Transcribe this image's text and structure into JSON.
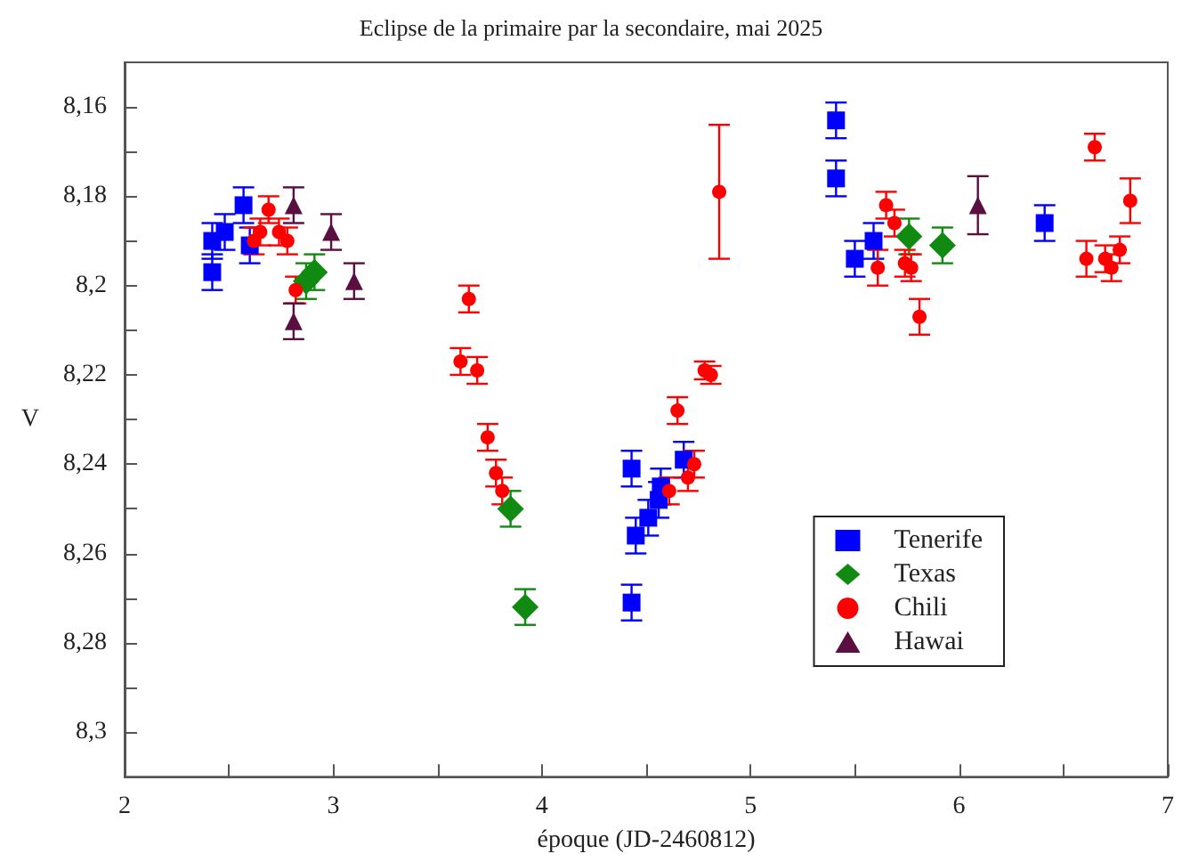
{
  "chart_data": {
    "type": "scatter",
    "title": "Eclipse de la primaire par la secondaire, mai 2025",
    "xlabel": "époque (JD-2460812)",
    "ylabel": "V",
    "xlim": [
      2,
      7
    ],
    "xticks": [
      2,
      {
        "value": 2.5,
        "label": null
      },
      3,
      {
        "value": 3.5,
        "label": null
      },
      4,
      {
        "value": 4.5,
        "label": null
      },
      5,
      {
        "value": 5.5,
        "label": null
      },
      6,
      {
        "value": 6.5,
        "label": null
      },
      7
    ],
    "ylim": [
      8.31,
      8.15
    ],
    "yticks": [
      {
        "value": 8.16,
        "label": "8,16"
      },
      {
        "value": 8.17,
        "label": null
      },
      {
        "value": 8.18,
        "label": "8,18"
      },
      {
        "value": 8.19,
        "label": null
      },
      {
        "value": 8.2,
        "label": "8,2"
      },
      {
        "value": 8.21,
        "label": null
      },
      {
        "value": 8.22,
        "label": "8,22"
      },
      {
        "value": 8.23,
        "label": null
      },
      {
        "value": 8.24,
        "label": "8,24"
      },
      {
        "value": 8.25,
        "label": null
      },
      {
        "value": 8.26,
        "label": "8,26"
      },
      {
        "value": 8.27,
        "label": null
      },
      {
        "value": 8.28,
        "label": "8,28"
      },
      {
        "value": 8.29,
        "label": null
      },
      {
        "value": 8.3,
        "label": "8,3"
      }
    ],
    "grid": false,
    "legend": "bottom right",
    "series": [
      {
        "name": "Tenerife",
        "color": "#0000ff",
        "marker": "square",
        "x": [
          2.42,
          2.42,
          2.48,
          2.57,
          2.6,
          4.43,
          4.45,
          4.43,
          4.51,
          4.56,
          4.57,
          4.68,
          5.41,
          5.41,
          5.5,
          5.59,
          6.41
        ],
        "values": [
          8.19,
          8.197,
          8.188,
          8.182,
          8.191,
          8.241,
          8.256,
          8.271,
          8.252,
          8.248,
          8.245,
          8.239,
          8.163,
          8.176,
          8.194,
          8.19,
          8.186
        ],
        "errors": [
          0.004,
          0.004,
          0.004,
          0.004,
          0.004,
          0.004,
          0.004,
          0.004,
          0.004,
          0.004,
          0.004,
          0.004,
          0.004,
          0.004,
          0.004,
          0.004,
          0.004
        ]
      },
      {
        "name": "Texas",
        "color": "#108a10",
        "marker": "diamond",
        "x": [
          2.87,
          2.91,
          3.85,
          3.92,
          5.76,
          5.92
        ],
        "values": [
          8.199,
          8.197,
          8.25,
          8.272,
          8.189,
          8.191
        ],
        "errors": [
          0.004,
          0.004,
          0.004,
          0.004,
          0.004,
          0.004
        ]
      },
      {
        "name": "Chili",
        "color": "#ff0000",
        "marker": "circle",
        "x": [
          2.62,
          2.65,
          2.69,
          2.74,
          2.78,
          2.82,
          3.61,
          3.65,
          3.69,
          3.74,
          3.78,
          3.81,
          4.61,
          4.65,
          4.7,
          4.73,
          4.78,
          4.81,
          4.85,
          5.61,
          5.65,
          5.69,
          5.74,
          5.77,
          5.81,
          6.61,
          6.65,
          6.7,
          6.73,
          6.77,
          6.82
        ],
        "values": [
          8.19,
          8.188,
          8.183,
          8.188,
          8.19,
          8.201,
          8.217,
          8.203,
          8.219,
          8.234,
          8.242,
          8.246,
          8.246,
          8.228,
          8.243,
          8.24,
          8.219,
          8.22,
          8.179,
          8.196,
          8.182,
          8.186,
          8.195,
          8.196,
          8.207,
          8.194,
          8.169,
          8.194,
          8.196,
          8.192,
          8.181
        ],
        "errors": [
          0.003,
          0.003,
          0.003,
          0.003,
          0.003,
          0.003,
          0.003,
          0.003,
          0.003,
          0.003,
          0.003,
          0.003,
          0.003,
          0.003,
          0.003,
          0.003,
          0.002,
          0.002,
          0.015,
          0.004,
          0.003,
          0.003,
          0.003,
          0.003,
          0.004,
          0.004,
          0.003,
          0.003,
          0.003,
          0.003,
          0.005
        ]
      },
      {
        "name": "Hawai",
        "color": "#5a0f40",
        "marker": "triangle",
        "x": [
          2.81,
          2.99,
          3.1,
          2.81,
          6.09
        ],
        "values": [
          8.182,
          8.188,
          8.199,
          8.208,
          8.182
        ],
        "errors": [
          0.004,
          0.004,
          0.004,
          0.004,
          0.0065
        ]
      }
    ]
  }
}
